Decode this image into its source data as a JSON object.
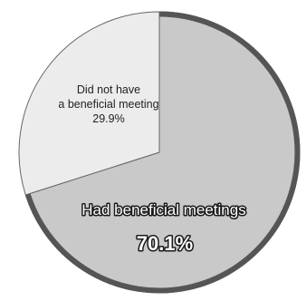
{
  "chart_data": {
    "type": "pie",
    "title": "",
    "slices": [
      {
        "label_lines": [
          "Had beneficial meetings"
        ],
        "value_label": "70.1%",
        "value": 70.1,
        "color": "#c9c9c9"
      },
      {
        "label_lines": [
          "Did not have",
          "a beneficial meeting"
        ],
        "value_label": "29.9%",
        "value": 29.9,
        "color": "#ececec"
      }
    ],
    "start": "12 o'clock",
    "direction": "clockwise",
    "highlight_ring_color": "#555555",
    "edge_color": "#666666"
  }
}
